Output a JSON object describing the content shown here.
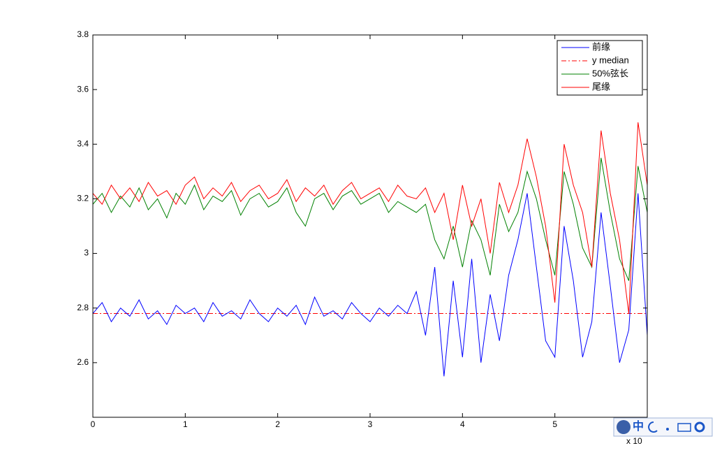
{
  "chart_data": {
    "type": "line",
    "x": [
      0,
      0.1,
      0.2,
      0.3,
      0.4,
      0.5,
      0.6,
      0.7,
      0.8,
      0.9,
      1,
      1.1,
      1.2,
      1.3,
      1.4,
      1.5,
      1.6,
      1.7,
      1.8,
      1.9,
      2,
      2.1,
      2.2,
      2.3,
      2.4,
      2.5,
      2.6,
      2.7,
      2.8,
      2.9,
      3,
      3.1,
      3.2,
      3.3,
      3.4,
      3.5,
      3.6,
      3.7,
      3.8,
      3.9,
      4,
      4.1,
      4.2,
      4.3,
      4.4,
      4.5,
      4.6,
      4.7,
      4.8,
      4.9,
      5,
      5.1,
      5.2,
      5.3,
      5.4,
      5.5,
      5.6,
      5.7,
      5.8,
      5.9,
      6
    ],
    "series": [
      {
        "name": "前缘",
        "color": "#0000ff",
        "values": [
          2.78,
          2.82,
          2.75,
          2.8,
          2.77,
          2.83,
          2.76,
          2.79,
          2.74,
          2.81,
          2.78,
          2.8,
          2.75,
          2.82,
          2.77,
          2.79,
          2.76,
          2.83,
          2.78,
          2.75,
          2.8,
          2.77,
          2.81,
          2.74,
          2.84,
          2.77,
          2.79,
          2.76,
          2.82,
          2.78,
          2.75,
          2.8,
          2.77,
          2.81,
          2.78,
          2.86,
          2.7,
          2.95,
          2.55,
          2.9,
          2.62,
          2.98,
          2.6,
          2.85,
          2.68,
          2.92,
          3.05,
          3.22,
          2.95,
          2.68,
          2.62,
          3.1,
          2.9,
          2.62,
          2.75,
          3.15,
          2.88,
          2.6,
          2.72,
          3.22,
          2.7
        ]
      },
      {
        "name": "y median",
        "color": "#ff0000",
        "dash": "dashdot",
        "x": [
          0,
          6
        ],
        "values": [
          2.78,
          2.78
        ]
      },
      {
        "name": "50%弦长",
        "color": "#008000",
        "values": [
          3.18,
          3.22,
          3.15,
          3.21,
          3.17,
          3.24,
          3.16,
          3.2,
          3.13,
          3.22,
          3.18,
          3.25,
          3.16,
          3.21,
          3.19,
          3.23,
          3.14,
          3.2,
          3.22,
          3.17,
          3.19,
          3.24,
          3.15,
          3.1,
          3.2,
          3.22,
          3.16,
          3.21,
          3.23,
          3.18,
          3.2,
          3.22,
          3.15,
          3.19,
          3.17,
          3.15,
          3.18,
          3.05,
          2.98,
          3.1,
          2.95,
          3.12,
          3.05,
          2.92,
          3.18,
          3.08,
          3.15,
          3.3,
          3.2,
          3.05,
          2.92,
          3.3,
          3.18,
          3.02,
          2.95,
          3.35,
          3.15,
          2.98,
          2.9,
          3.32,
          3.15
        ]
      },
      {
        "name": "尾缘",
        "color": "#ff0000",
        "values": [
          3.22,
          3.18,
          3.25,
          3.2,
          3.24,
          3.19,
          3.26,
          3.21,
          3.23,
          3.18,
          3.25,
          3.28,
          3.2,
          3.24,
          3.21,
          3.26,
          3.19,
          3.23,
          3.25,
          3.2,
          3.22,
          3.27,
          3.19,
          3.24,
          3.21,
          3.25,
          3.18,
          3.23,
          3.26,
          3.2,
          3.22,
          3.24,
          3.19,
          3.25,
          3.21,
          3.2,
          3.24,
          3.15,
          3.22,
          3.05,
          3.25,
          3.1,
          3.2,
          3.0,
          3.26,
          3.15,
          3.25,
          3.42,
          3.28,
          3.1,
          2.82,
          3.4,
          3.25,
          3.15,
          2.95,
          3.45,
          3.22,
          3.05,
          2.78,
          3.48,
          3.25
        ]
      }
    ],
    "xlim": [
      0,
      6
    ],
    "xticks": [
      0,
      1,
      2,
      3,
      4,
      5
    ],
    "ylim": [
      2.4,
      3.8
    ],
    "yticks": [
      2.6,
      2.8,
      3,
      3.2,
      3.4,
      3.6,
      3.8
    ],
    "x_multiplier": "x 10",
    "legend": "upper right"
  },
  "ime_toolbar": {
    "label": "中"
  }
}
